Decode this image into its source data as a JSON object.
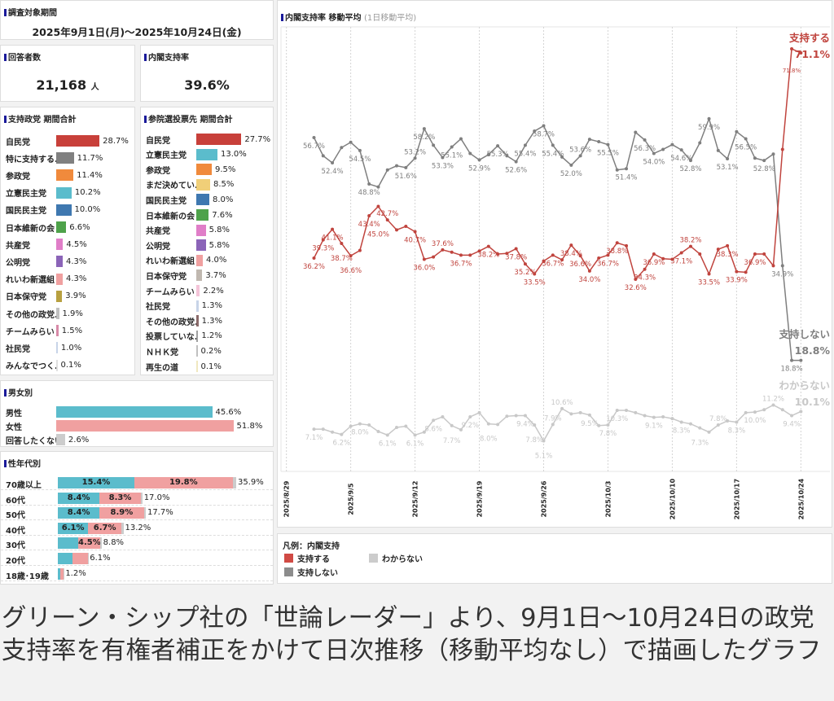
{
  "period": {
    "title": "調査対象期間",
    "value": "2025年9月1日(月)～2025年10月24日(金)"
  },
  "respondents": {
    "title": "回答者数",
    "value": "21,168",
    "unit": "人"
  },
  "approval": {
    "title": "内閣支持率",
    "value": "39.6%"
  },
  "party_support": {
    "title": "支持政党 期間合計",
    "items": [
      {
        "label": "自民党",
        "value": 28.7,
        "text": "28.7%",
        "color": "#c8403a"
      },
      {
        "label": "特に支持する..",
        "value": 11.7,
        "text": "11.7%",
        "color": "#808080"
      },
      {
        "label": "参政党",
        "value": 11.4,
        "text": "11.4%",
        "color": "#f08a3c"
      },
      {
        "label": "立憲民主党",
        "value": 10.2,
        "text": "10.2%",
        "color": "#5bbccc"
      },
      {
        "label": "国民民主党",
        "value": 10.0,
        "text": "10.0%",
        "color": "#3f78b0"
      },
      {
        "label": "日本維新の会",
        "value": 6.6,
        "text": "6.6%",
        "color": "#4ea24a"
      },
      {
        "label": "共産党",
        "value": 4.5,
        "text": "4.5%",
        "color": "#e07ec8"
      },
      {
        "label": "公明党",
        "value": 4.3,
        "text": "4.3%",
        "color": "#8b64b8"
      },
      {
        "label": "れいわ新選組",
        "value": 4.3,
        "text": "4.3%",
        "color": "#f0a0a0"
      },
      {
        "label": "日本保守党",
        "value": 3.9,
        "text": "3.9%",
        "color": "#b8a040"
      },
      {
        "label": "その他の政党..",
        "value": 1.9,
        "text": "1.9%",
        "color": "#c0c0c0"
      },
      {
        "label": "チームみらい",
        "value": 1.5,
        "text": "1.5%",
        "color": "#d88aa8"
      },
      {
        "label": "社民党",
        "value": 1.0,
        "text": "1.0%",
        "color": "#c8d4e8"
      },
      {
        "label": "みんなでつく..",
        "value": 0.1,
        "text": "0.1%",
        "color": "#e0e0e0"
      }
    ]
  },
  "vote_intent": {
    "title": "参院選投票先 期間合計",
    "items": [
      {
        "label": "自民党",
        "value": 27.7,
        "text": "27.7%",
        "color": "#c8403a"
      },
      {
        "label": "立憲民主党",
        "value": 13.0,
        "text": "13.0%",
        "color": "#5bbccc"
      },
      {
        "label": "参政党",
        "value": 9.5,
        "text": "9.5%",
        "color": "#f08a3c"
      },
      {
        "label": "まだ決めてい..",
        "value": 8.5,
        "text": "8.5%",
        "color": "#f0cf78"
      },
      {
        "label": "国民民主党",
        "value": 8.0,
        "text": "8.0%",
        "color": "#3f78b0"
      },
      {
        "label": "日本維新の会",
        "value": 7.6,
        "text": "7.6%",
        "color": "#4ea24a"
      },
      {
        "label": "共産党",
        "value": 5.8,
        "text": "5.8%",
        "color": "#e07ec8"
      },
      {
        "label": "公明党",
        "value": 5.8,
        "text": "5.8%",
        "color": "#8b64b8"
      },
      {
        "label": "れいわ新選組",
        "value": 4.0,
        "text": "4.0%",
        "color": "#f0a0a0"
      },
      {
        "label": "日本保守党",
        "value": 3.7,
        "text": "3.7%",
        "color": "#c0b8b0"
      },
      {
        "label": "チームみらい",
        "value": 2.2,
        "text": "2.2%",
        "color": "#f4c4d8"
      },
      {
        "label": "社民党",
        "value": 1.3,
        "text": "1.3%",
        "color": "#c8d4e8"
      },
      {
        "label": "その他の政党..",
        "value": 1.3,
        "text": "1.3%",
        "color": "#8a6a6a"
      },
      {
        "label": "投票していな..",
        "value": 1.2,
        "text": "1.2%",
        "color": "#a0a0a0"
      },
      {
        "label": "ＮＨＫ党",
        "value": 0.2,
        "text": "0.2%",
        "color": "#c0c0c0"
      },
      {
        "label": "再生の道",
        "value": 0.1,
        "text": "0.1%",
        "color": "#f0e8c0"
      }
    ]
  },
  "gender": {
    "title": "男女別",
    "items": [
      {
        "label": "男性",
        "value": 45.6,
        "text": "45.6%",
        "color": "#5bbccc"
      },
      {
        "label": "女性",
        "value": 51.8,
        "text": "51.8%",
        "color": "#f0a0a0"
      },
      {
        "label": "回答したくない",
        "value": 2.6,
        "text": "2.6%",
        "color": "#cccccc"
      }
    ]
  },
  "age": {
    "title": "性年代別",
    "colors": [
      "#5bbccc",
      "#f0a0a0",
      "#cccccc"
    ],
    "items": [
      {
        "label": "70歳以上",
        "segments": [
          {
            "value": 15.4,
            "text": "15.4%"
          },
          {
            "value": 19.8,
            "text": "19.8%"
          },
          {
            "value": 0.7,
            "text": ""
          }
        ],
        "total": "35.9%"
      },
      {
        "label": "60代",
        "segments": [
          {
            "value": 8.4,
            "text": "8.4%"
          },
          {
            "value": 8.3,
            "text": "8.3%"
          },
          {
            "value": 0.3,
            "text": ""
          }
        ],
        "total": "17.0%"
      },
      {
        "label": "50代",
        "segments": [
          {
            "value": 8.4,
            "text": "8.4%"
          },
          {
            "value": 8.9,
            "text": "8.9%"
          },
          {
            "value": 0.4,
            "text": ""
          }
        ],
        "total": "17.7%"
      },
      {
        "label": "40代",
        "segments": [
          {
            "value": 6.1,
            "text": "6.1%"
          },
          {
            "value": 6.7,
            "text": "6.7%"
          },
          {
            "value": 0.4,
            "text": ""
          }
        ],
        "total": "13.2%"
      },
      {
        "label": "30代",
        "segments": [
          {
            "value": 4.1,
            "text": ""
          },
          {
            "value": 4.5,
            "text": "4.5%"
          },
          {
            "value": 0.2,
            "text": ""
          }
        ],
        "total": "8.8%"
      },
      {
        "label": "20代",
        "segments": [
          {
            "value": 2.9,
            "text": ""
          },
          {
            "value": 3.1,
            "text": ""
          },
          {
            "value": 0.1,
            "text": ""
          }
        ],
        "total": "6.1%"
      },
      {
        "label": "18歳･19歳",
        "segments": [
          {
            "value": 0.5,
            "text": ""
          },
          {
            "value": 0.6,
            "text": ""
          },
          {
            "value": 0.1,
            "text": ""
          }
        ],
        "total": "1.2%"
      }
    ]
  },
  "chart_data": {
    "type": "line",
    "title": "内閣支持率 移動平均",
    "subtitle": "(1日移動平均)",
    "x_start": "2025/9/1",
    "x_end": "2025/10/24",
    "x_ticks": [
      "2025/8/29",
      "2025/9/5",
      "2025/9/12",
      "2025/9/19",
      "2025/9/26",
      "2025/10/3",
      "2025/10/10",
      "2025/10/17",
      "2025/10/24"
    ],
    "xlabel": "",
    "ylabel": "",
    "grid": "vertical",
    "series": [
      {
        "name": "支持しない",
        "color": "#7f7f7f",
        "end_label": "18.8%",
        "values": [
          56.7,
          53.6,
          52.4,
          55.0,
          55.9,
          54.5,
          48.8,
          48.3,
          51.2,
          51.9,
          51.6,
          53.2,
          58.2,
          55.4,
          53.3,
          55.1,
          56.5,
          54.0,
          52.9,
          53.8,
          55.3,
          53.6,
          52.6,
          55.4,
          57.8,
          58.7,
          55.4,
          53.4,
          52.0,
          53.6,
          56.4,
          56.0,
          55.5,
          51.2,
          51.4,
          57.6,
          56.3,
          54.0,
          54.7,
          55.5,
          54.6,
          52.8,
          55.8,
          59.9,
          54.5,
          53.1,
          57.7,
          56.5,
          53.2,
          52.8,
          53.9,
          34.9,
          18.8,
          18.8
        ],
        "labeled": [
          0,
          2,
          5,
          6,
          10,
          11,
          12,
          14,
          15,
          18,
          20,
          22,
          23,
          25,
          26,
          28,
          29,
          32,
          34,
          36,
          37,
          40,
          41,
          43,
          45,
          47,
          49,
          51,
          52
        ]
      },
      {
        "name": "支持する",
        "color": "#c0443e",
        "end_label": "71.1%",
        "values": [
          36.2,
          39.3,
          41.1,
          38.7,
          36.6,
          37.5,
          43.4,
          45.0,
          42.7,
          41.0,
          41.6,
          40.7,
          36.0,
          36.4,
          37.6,
          37.2,
          36.7,
          36.7,
          37.4,
          38.2,
          36.9,
          37.0,
          37.8,
          35.2,
          33.5,
          35.7,
          36.7,
          35.9,
          38.4,
          36.6,
          34.0,
          36.2,
          36.7,
          38.8,
          38.3,
          32.6,
          34.3,
          36.9,
          36.1,
          36.0,
          37.1,
          38.2,
          36.9,
          33.5,
          37.7,
          38.3,
          33.9,
          33.8,
          36.9,
          36.9,
          34.9,
          54.7,
          71.8,
          71.1
        ],
        "labeled": [
          0,
          1,
          2,
          3,
          4,
          6,
          7,
          8,
          11,
          12,
          14,
          16,
          19,
          22,
          23,
          24,
          26,
          28,
          29,
          30,
          32,
          33,
          35,
          36,
          37,
          40,
          41,
          43,
          45,
          46,
          48,
          52
        ]
      },
      {
        "name": "わからない",
        "color": "#c8c8c8",
        "end_label": "10.1%",
        "values": [
          7.1,
          7.1,
          6.6,
          6.2,
          7.6,
          8.0,
          7.8,
          6.7,
          6.1,
          7.4,
          7.6,
          6.1,
          6.6,
          8.6,
          9.2,
          7.7,
          7.0,
          9.2,
          9.9,
          8.0,
          7.9,
          9.3,
          9.4,
          9.4,
          7.8,
          5.1,
          7.9,
          10.6,
          9.7,
          9.9,
          9.5,
          7.7,
          7.8,
          10.3,
          10.3,
          9.9,
          9.4,
          9.1,
          9.2,
          8.9,
          8.3,
          8.0,
          7.3,
          6.6,
          7.8,
          8.5,
          8.3,
          9.9,
          10.0,
          10.4,
          11.2,
          10.4,
          9.4,
          10.1
        ],
        "labeled": [
          0,
          3,
          5,
          8,
          11,
          13,
          15,
          17,
          19,
          23,
          24,
          25,
          26,
          27,
          30,
          32,
          33,
          37,
          40,
          42,
          44,
          46,
          48,
          50,
          52
        ]
      }
    ]
  },
  "legend": {
    "title": "凡例：内閣支持",
    "items": [
      {
        "label": "支持する",
        "color": "#d04a44"
      },
      {
        "label": "わからない",
        "color": "#cccccc"
      },
      {
        "label": "支持しない",
        "color": "#8c8c8c"
      }
    ]
  },
  "caption": "グリーン・シップ社の「世論レーダー」より、9月1日〜10月24日の政党支持率を有権者補正をかけて日次推移（移動平均なし）で描画したグラフ"
}
